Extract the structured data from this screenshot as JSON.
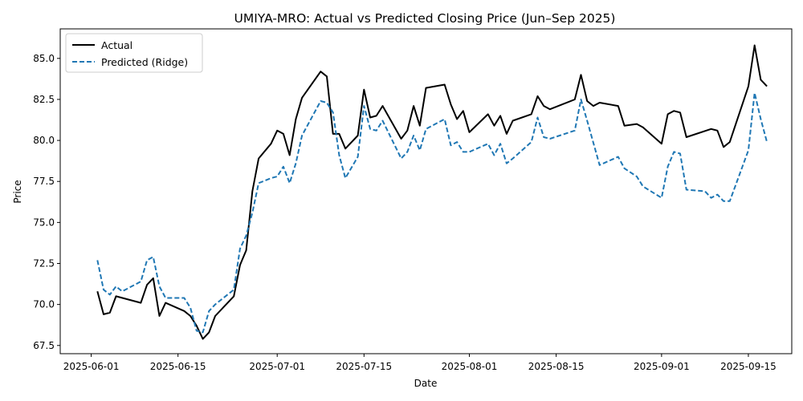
{
  "chart_data": {
    "type": "line",
    "title": "UMIYA-MRO: Actual vs Predicted Closing Price (Jun–Sep 2025)",
    "xlabel": "Date",
    "ylabel": "Price",
    "xlim": [
      "2025-05-27",
      "2025-09-22"
    ],
    "ylim": [
      67.0,
      86.8
    ],
    "x_ticks": [
      "2025-06-01",
      "2025-06-15",
      "2025-07-01",
      "2025-07-15",
      "2025-08-01",
      "2025-08-15",
      "2025-09-01",
      "2025-09-15"
    ],
    "y_ticks": [
      67.5,
      70.0,
      72.5,
      75.0,
      77.5,
      80.0,
      82.5,
      85.0
    ],
    "y_tick_labels": [
      "67.5",
      "70.0",
      "72.5",
      "75.0",
      "77.5",
      "80.0",
      "82.5",
      "85.0"
    ],
    "grid": false,
    "legend_position": "top-left",
    "series": [
      {
        "name": "Actual",
        "color": "#000000",
        "style": "solid",
        "points": [
          [
            "2025-06-02",
            70.8
          ],
          [
            "2025-06-03",
            69.4
          ],
          [
            "2025-06-04",
            69.5
          ],
          [
            "2025-06-05",
            70.5
          ],
          [
            "2025-06-09",
            70.1
          ],
          [
            "2025-06-10",
            71.2
          ],
          [
            "2025-06-11",
            71.6
          ],
          [
            "2025-06-12",
            69.3
          ],
          [
            "2025-06-13",
            70.1
          ],
          [
            "2025-06-16",
            69.6
          ],
          [
            "2025-06-17",
            69.3
          ],
          [
            "2025-06-18",
            68.7
          ],
          [
            "2025-06-19",
            67.9
          ],
          [
            "2025-06-20",
            68.3
          ],
          [
            "2025-06-21",
            69.3
          ],
          [
            "2025-06-24",
            70.5
          ],
          [
            "2025-06-25",
            72.4
          ],
          [
            "2025-06-26",
            73.3
          ],
          [
            "2025-06-27",
            76.9
          ],
          [
            "2025-06-28",
            78.9
          ],
          [
            "2025-06-30",
            79.8
          ],
          [
            "2025-07-01",
            80.6
          ],
          [
            "2025-07-02",
            80.4
          ],
          [
            "2025-07-03",
            79.1
          ],
          [
            "2025-07-04",
            81.3
          ],
          [
            "2025-07-05",
            82.6
          ],
          [
            "2025-07-08",
            84.2
          ],
          [
            "2025-07-09",
            83.9
          ],
          [
            "2025-07-10",
            80.4
          ],
          [
            "2025-07-11",
            80.4
          ],
          [
            "2025-07-12",
            79.5
          ],
          [
            "2025-07-14",
            80.3
          ],
          [
            "2025-07-15",
            83.1
          ],
          [
            "2025-07-16",
            81.4
          ],
          [
            "2025-07-17",
            81.5
          ],
          [
            "2025-07-18",
            82.1
          ],
          [
            "2025-07-21",
            80.1
          ],
          [
            "2025-07-22",
            80.6
          ],
          [
            "2025-07-23",
            82.1
          ],
          [
            "2025-07-24",
            80.9
          ],
          [
            "2025-07-25",
            83.2
          ],
          [
            "2025-07-28",
            83.4
          ],
          [
            "2025-07-29",
            82.2
          ],
          [
            "2025-07-30",
            81.3
          ],
          [
            "2025-07-31",
            81.8
          ],
          [
            "2025-08-01",
            80.5
          ],
          [
            "2025-08-04",
            81.6
          ],
          [
            "2025-08-05",
            80.9
          ],
          [
            "2025-08-06",
            81.5
          ],
          [
            "2025-08-07",
            80.4
          ],
          [
            "2025-08-08",
            81.2
          ],
          [
            "2025-08-11",
            81.6
          ],
          [
            "2025-08-12",
            82.7
          ],
          [
            "2025-08-13",
            82.1
          ],
          [
            "2025-08-14",
            81.9
          ],
          [
            "2025-08-18",
            82.5
          ],
          [
            "2025-08-19",
            84.0
          ],
          [
            "2025-08-20",
            82.4
          ],
          [
            "2025-08-21",
            82.1
          ],
          [
            "2025-08-22",
            82.3
          ],
          [
            "2025-08-25",
            82.1
          ],
          [
            "2025-08-26",
            80.9
          ],
          [
            "2025-08-28",
            81.0
          ],
          [
            "2025-08-29",
            80.8
          ],
          [
            "2025-09-01",
            79.8
          ],
          [
            "2025-09-02",
            81.6
          ],
          [
            "2025-09-03",
            81.8
          ],
          [
            "2025-09-04",
            81.7
          ],
          [
            "2025-09-05",
            80.2
          ],
          [
            "2025-09-09",
            80.7
          ],
          [
            "2025-09-10",
            80.6
          ],
          [
            "2025-09-11",
            79.6
          ],
          [
            "2025-09-12",
            79.9
          ],
          [
            "2025-09-15",
            83.3
          ],
          [
            "2025-09-16",
            85.8
          ],
          [
            "2025-09-17",
            83.7
          ],
          [
            "2025-09-18",
            83.3
          ]
        ]
      },
      {
        "name": "Predicted (Ridge)",
        "color": "#1f77b4",
        "style": "dashed",
        "points": [
          [
            "2025-06-02",
            72.7
          ],
          [
            "2025-06-03",
            70.9
          ],
          [
            "2025-06-04",
            70.6
          ],
          [
            "2025-06-05",
            71.1
          ],
          [
            "2025-06-06",
            70.8
          ],
          [
            "2025-06-09",
            71.4
          ],
          [
            "2025-06-10",
            72.7
          ],
          [
            "2025-06-11",
            72.9
          ],
          [
            "2025-06-12",
            71.1
          ],
          [
            "2025-06-13",
            70.4
          ],
          [
            "2025-06-16",
            70.4
          ],
          [
            "2025-06-17",
            69.8
          ],
          [
            "2025-06-18",
            68.4
          ],
          [
            "2025-06-19",
            68.3
          ],
          [
            "2025-06-20",
            69.6
          ],
          [
            "2025-06-21",
            70.0
          ],
          [
            "2025-06-24",
            70.9
          ],
          [
            "2025-06-25",
            73.4
          ],
          [
            "2025-06-26",
            74.2
          ],
          [
            "2025-06-27",
            75.6
          ],
          [
            "2025-06-28",
            77.4
          ],
          [
            "2025-06-30",
            77.7
          ],
          [
            "2025-07-01",
            77.8
          ],
          [
            "2025-07-02",
            78.4
          ],
          [
            "2025-07-03",
            77.4
          ],
          [
            "2025-07-04",
            78.6
          ],
          [
            "2025-07-05",
            80.3
          ],
          [
            "2025-07-08",
            82.4
          ],
          [
            "2025-07-09",
            82.3
          ],
          [
            "2025-07-10",
            81.7
          ],
          [
            "2025-07-11",
            79.1
          ],
          [
            "2025-07-12",
            77.7
          ],
          [
            "2025-07-14",
            79.0
          ],
          [
            "2025-07-15",
            82.1
          ],
          [
            "2025-07-16",
            80.7
          ],
          [
            "2025-07-17",
            80.6
          ],
          [
            "2025-07-18",
            81.2
          ],
          [
            "2025-07-21",
            78.9
          ],
          [
            "2025-07-22",
            79.3
          ],
          [
            "2025-07-23",
            80.3
          ],
          [
            "2025-07-24",
            79.4
          ],
          [
            "2025-07-25",
            80.7
          ],
          [
            "2025-07-28",
            81.3
          ],
          [
            "2025-07-29",
            79.7
          ],
          [
            "2025-07-30",
            79.9
          ],
          [
            "2025-07-31",
            79.3
          ],
          [
            "2025-08-01",
            79.3
          ],
          [
            "2025-08-04",
            79.8
          ],
          [
            "2025-08-05",
            79.1
          ],
          [
            "2025-08-06",
            79.8
          ],
          [
            "2025-08-07",
            78.6
          ],
          [
            "2025-08-08",
            78.9
          ],
          [
            "2025-08-11",
            79.9
          ],
          [
            "2025-08-12",
            81.4
          ],
          [
            "2025-08-13",
            80.2
          ],
          [
            "2025-08-14",
            80.1
          ],
          [
            "2025-08-18",
            80.6
          ],
          [
            "2025-08-19",
            82.5
          ],
          [
            "2025-08-20",
            81.2
          ],
          [
            "2025-08-22",
            78.5
          ],
          [
            "2025-08-25",
            79.0
          ],
          [
            "2025-08-26",
            78.3
          ],
          [
            "2025-08-28",
            77.8
          ],
          [
            "2025-08-29",
            77.2
          ],
          [
            "2025-09-01",
            76.5
          ],
          [
            "2025-09-02",
            78.4
          ],
          [
            "2025-09-03",
            79.3
          ],
          [
            "2025-09-04",
            79.2
          ],
          [
            "2025-09-05",
            77.0
          ],
          [
            "2025-09-08",
            76.9
          ],
          [
            "2025-09-09",
            76.5
          ],
          [
            "2025-09-10",
            76.7
          ],
          [
            "2025-09-11",
            76.3
          ],
          [
            "2025-09-12",
            76.3
          ],
          [
            "2025-09-15",
            79.4
          ],
          [
            "2025-09-16",
            82.9
          ],
          [
            "2025-09-17",
            81.3
          ],
          [
            "2025-09-18",
            79.9
          ]
        ]
      }
    ]
  }
}
